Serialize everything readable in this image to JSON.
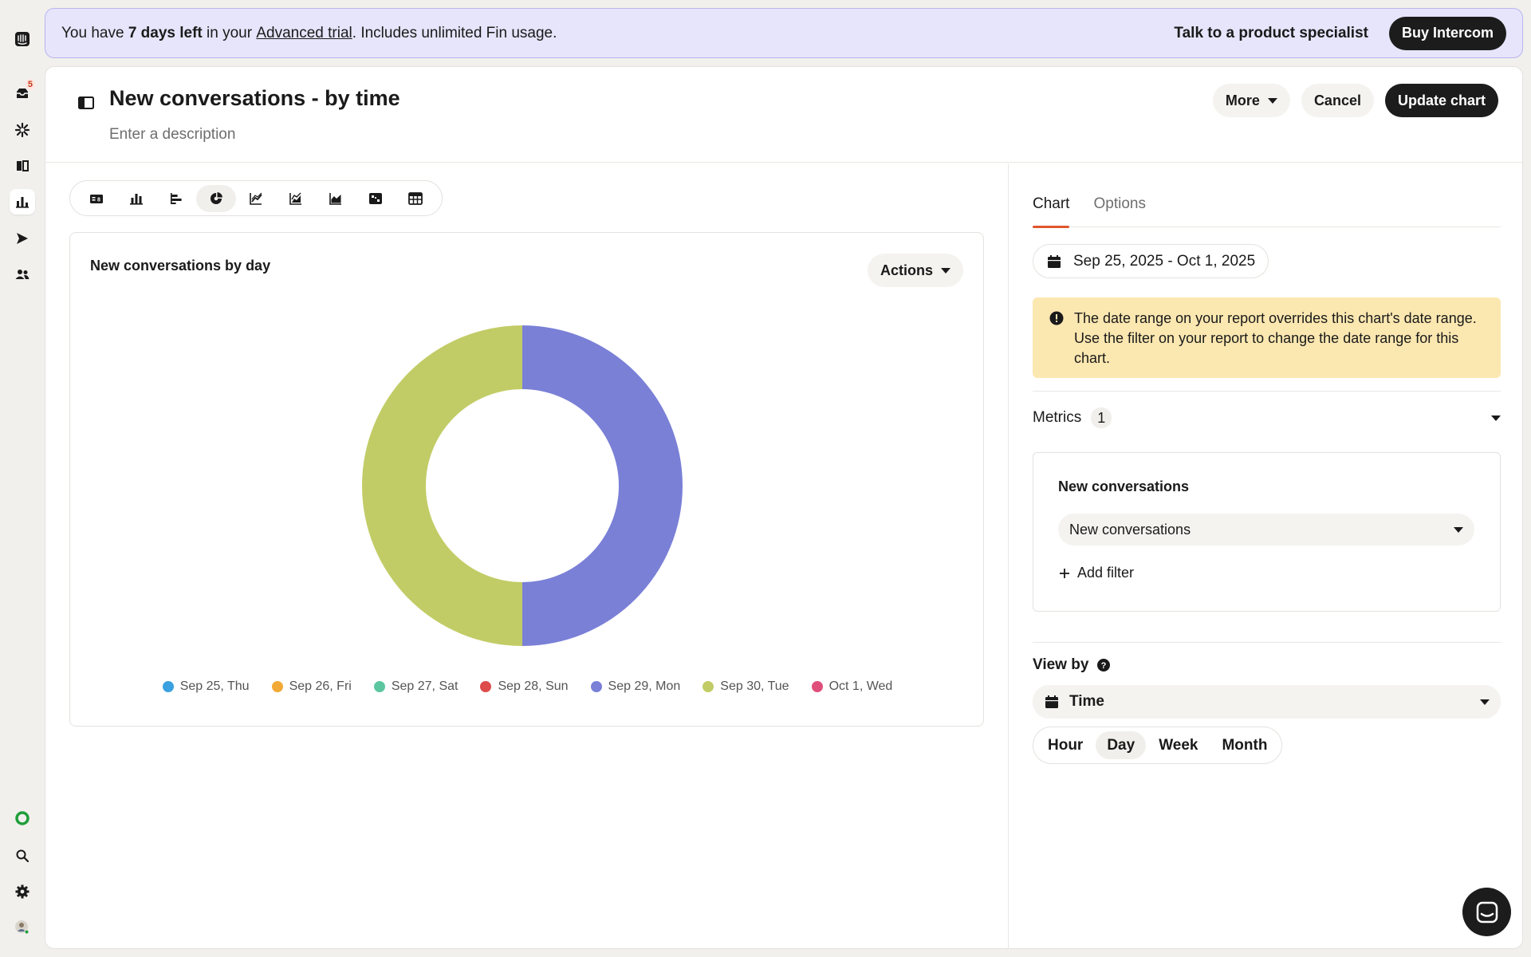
{
  "rail": {
    "inbox_badge": "5"
  },
  "banner": {
    "prefix": "You have ",
    "days": "7 days left",
    "middle": " in your ",
    "trial_link": "Advanced trial",
    "suffix": ". Includes unlimited Fin usage.",
    "specialist": "Talk to a product specialist",
    "buy": "Buy Intercom"
  },
  "header": {
    "title": "New conversations - by time",
    "description_placeholder": "Enter a description",
    "more": "More",
    "cancel": "Cancel",
    "update": "Update chart"
  },
  "chart_types": [
    "big-number-icon",
    "column-chart-icon",
    "bar-chart-icon",
    "donut-chart-icon",
    "line-chart-icon",
    "area-line-icon",
    "area-chart-icon",
    "heatmap-icon",
    "table-icon"
  ],
  "chart_card": {
    "title": "New conversations by day",
    "actions": "Actions"
  },
  "chart_data": {
    "type": "pie",
    "title": "New conversations by day",
    "categories": [
      "Sep 25, Thu",
      "Sep 26, Fri",
      "Sep 27, Sat",
      "Sep 28, Sun",
      "Sep 29, Mon",
      "Sep 30, Tue",
      "Oct 1, Wed"
    ],
    "values": [
      0,
      0,
      0,
      0,
      1,
      1,
      0
    ],
    "colors": [
      "#3aa0e0",
      "#f2a935",
      "#5cc6a0",
      "#dd4b4b",
      "#7a80d6",
      "#c2cc66",
      "#e04f7b"
    ],
    "donut": true
  },
  "right": {
    "tabs": [
      "Chart",
      "Options"
    ],
    "date_range": "Sep 25, 2025 - Oct 1, 2025",
    "warning": "The date range on your report overrides this chart's date range. Use the filter on your report to change the date range for this chart.",
    "metrics_label": "Metrics",
    "metrics_count": "1",
    "metric_title": "New conversations",
    "metric_select": "New conversations",
    "add_filter": "Add filter",
    "view_by": "View by",
    "view_by_value": "Time",
    "granularity": [
      "Hour",
      "Day",
      "Week",
      "Month"
    ],
    "granularity_selected": "Day"
  }
}
